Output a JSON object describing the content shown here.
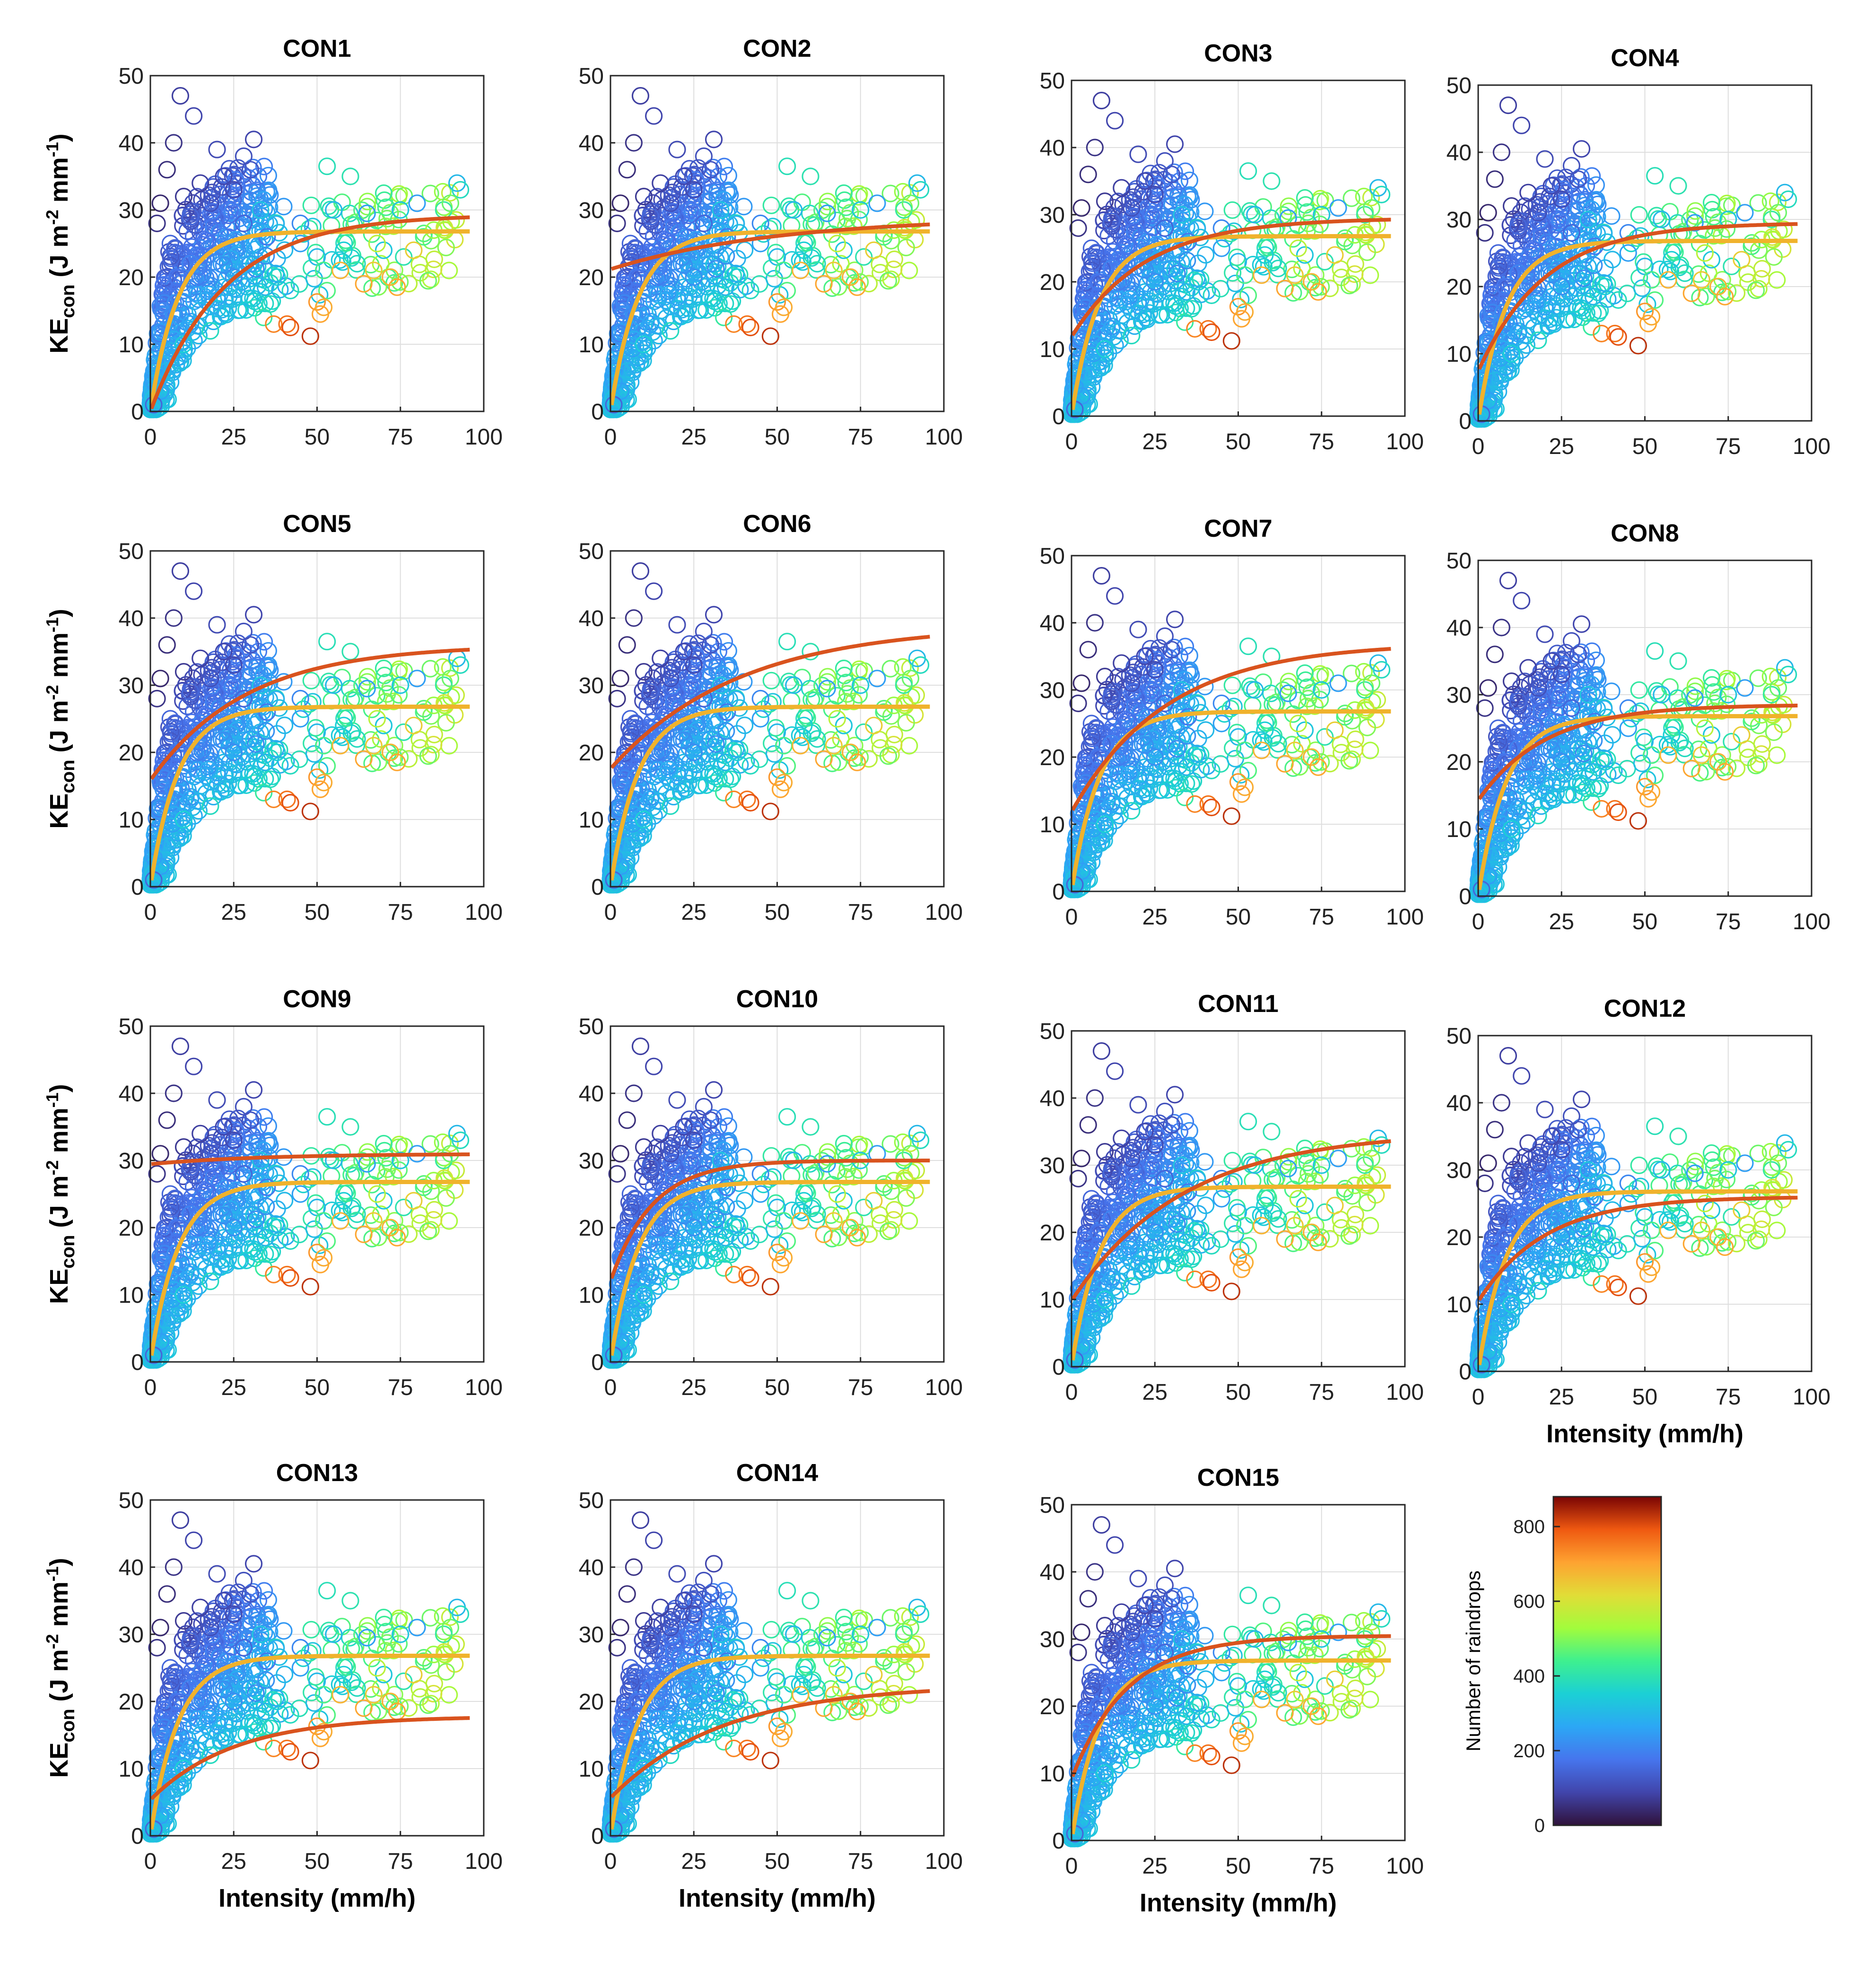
{
  "chart_data": {
    "type": "scatter",
    "panel_titles": [
      "CON1",
      "CON2",
      "CON3",
      "CON4",
      "CON5",
      "CON6",
      "CON7",
      "CON8",
      "CON9",
      "CON10",
      "CON11",
      "CON12",
      "CON13",
      "CON14",
      "CON15"
    ],
    "xlabel": "Intensity (mm/h)",
    "ylabel_main": "KE",
    "ylabel_sub": "con",
    "ylabel_units": "(J m-2 mm-1)",
    "xticks": [
      "0",
      "25",
      "50",
      "75",
      "100"
    ],
    "yticks": [
      "0",
      "10",
      "20",
      "30",
      "40",
      "50"
    ],
    "xlim": [
      0,
      100
    ],
    "ylim": [
      0,
      50
    ],
    "grid": true,
    "colorbar": {
      "label": "Number of raindrops",
      "ticks": [
        "0",
        "200",
        "400",
        "600",
        "800"
      ],
      "range": [
        0,
        880
      ],
      "colormap": "turbo"
    },
    "reference_curve": {
      "color": "#f0b22c",
      "asymptote": 26.8,
      "rate": 0.12,
      "note_shape": "KE = a*(1 - b*exp(-c*I))"
    },
    "fitted_curves": [
      {
        "panel": "CON1",
        "color": "#d9531e",
        "a": 29.3,
        "b": 1.0,
        "c": 0.045
      },
      {
        "panel": "CON2",
        "color": "#d9531e",
        "a": 29.0,
        "b": 0.27,
        "c": 0.02
      },
      {
        "panel": "CON3",
        "color": "#d9531e",
        "a": 29.5,
        "b": 0.6,
        "c": 0.045
      },
      {
        "panel": "CON4",
        "color": "#d9531e",
        "a": 29.5,
        "b": 0.75,
        "c": 0.05
      },
      {
        "panel": "CON5",
        "color": "#d9531e",
        "a": 36.0,
        "b": 0.56,
        "c": 0.035
      },
      {
        "panel": "CON6",
        "color": "#d9531e",
        "a": 39.0,
        "b": 0.55,
        "c": 0.026
      },
      {
        "panel": "CON7",
        "color": "#d9531e",
        "a": 37.0,
        "b": 0.68,
        "c": 0.035
      },
      {
        "panel": "CON8",
        "color": "#d9531e",
        "a": 28.5,
        "b": 0.5,
        "c": 0.05
      },
      {
        "panel": "CON9",
        "color": "#d9531e",
        "a": 31.0,
        "b": 0.05,
        "c": 0.03
      },
      {
        "panel": "CON10",
        "color": "#d9531e",
        "a": 30.0,
        "b": 0.6,
        "c": 0.08
      },
      {
        "panel": "CON11",
        "color": "#d9531e",
        "a": 35.0,
        "b": 0.72,
        "c": 0.03
      },
      {
        "panel": "CON12",
        "color": "#d9531e",
        "a": 26.0,
        "b": 0.6,
        "c": 0.05
      },
      {
        "panel": "CON13",
        "color": "#d9531e",
        "a": 17.8,
        "b": 0.7,
        "c": 0.04
      },
      {
        "panel": "CON14",
        "color": "#d9531e",
        "a": 22.5,
        "b": 0.75,
        "c": 0.03
      },
      {
        "panel": "CON15",
        "color": "#d9531e",
        "a": 30.5,
        "b": 0.7,
        "c": 0.06
      }
    ],
    "scatter_points": [
      {
        "x": 9,
        "y": 47,
        "n": 80
      },
      {
        "x": 13,
        "y": 44,
        "n": 90
      },
      {
        "x": 7,
        "y": 40,
        "n": 60
      },
      {
        "x": 20,
        "y": 39,
        "n": 100
      },
      {
        "x": 28,
        "y": 38,
        "n": 110
      },
      {
        "x": 31,
        "y": 40.5,
        "n": 90
      },
      {
        "x": 30,
        "y": 36,
        "n": 120
      },
      {
        "x": 22,
        "y": 35,
        "n": 90
      },
      {
        "x": 5,
        "y": 36,
        "n": 50
      },
      {
        "x": 15,
        "y": 34,
        "n": 80
      },
      {
        "x": 25,
        "y": 33,
        "n": 100
      },
      {
        "x": 10,
        "y": 32,
        "n": 70
      },
      {
        "x": 3,
        "y": 31,
        "n": 40
      },
      {
        "x": 18,
        "y": 31,
        "n": 110
      },
      {
        "x": 2,
        "y": 28,
        "n": 60
      },
      {
        "x": 12,
        "y": 29,
        "n": 150
      },
      {
        "x": 40,
        "y": 30.5,
        "n": 240
      },
      {
        "x": 53,
        "y": 36.5,
        "n": 390
      },
      {
        "x": 60,
        "y": 35,
        "n": 400
      },
      {
        "x": 45,
        "y": 28,
        "n": 210
      },
      {
        "x": 55,
        "y": 30,
        "n": 300
      },
      {
        "x": 65,
        "y": 29.5,
        "n": 250
      },
      {
        "x": 70,
        "y": 32.5,
        "n": 420
      },
      {
        "x": 75,
        "y": 30,
        "n": 330
      },
      {
        "x": 80,
        "y": 31,
        "n": 250
      },
      {
        "x": 92,
        "y": 34,
        "n": 300
      },
      {
        "x": 93,
        "y": 33,
        "n": 380
      },
      {
        "x": 88,
        "y": 30,
        "n": 420
      },
      {
        "x": 35,
        "y": 26,
        "n": 180
      },
      {
        "x": 45,
        "y": 25,
        "n": 250
      },
      {
        "x": 50,
        "y": 23,
        "n": 300
      },
      {
        "x": 58,
        "y": 24,
        "n": 350
      },
      {
        "x": 62,
        "y": 22,
        "n": 380
      },
      {
        "x": 70,
        "y": 24,
        "n": 330
      },
      {
        "x": 76,
        "y": 23,
        "n": 400
      },
      {
        "x": 82,
        "y": 26,
        "n": 450
      },
      {
        "x": 38,
        "y": 20,
        "n": 350
      },
      {
        "x": 42,
        "y": 18,
        "n": 380
      },
      {
        "x": 52,
        "y": 21,
        "n": 450
      },
      {
        "x": 30,
        "y": 22,
        "n": 250
      },
      {
        "x": 25,
        "y": 20,
        "n": 220
      },
      {
        "x": 20,
        "y": 17,
        "n": 260
      },
      {
        "x": 15,
        "y": 15,
        "n": 300
      },
      {
        "x": 18,
        "y": 12,
        "n": 380
      },
      {
        "x": 10,
        "y": 10,
        "n": 350
      },
      {
        "x": 5,
        "y": 6,
        "n": 300
      },
      {
        "x": 3,
        "y": 3,
        "n": 250
      },
      {
        "x": 1,
        "y": 1,
        "n": 150
      },
      {
        "x": 8,
        "y": 20,
        "n": 180
      },
      {
        "x": 6,
        "y": 25,
        "n": 150
      },
      {
        "x": 4,
        "y": 15,
        "n": 200
      },
      {
        "x": 12,
        "y": 22,
        "n": 200
      },
      {
        "x": 28,
        "y": 28,
        "n": 150
      },
      {
        "x": 34,
        "y": 14,
        "n": 420
      },
      {
        "x": 36,
        "y": 16,
        "n": 380
      },
      {
        "x": 37,
        "y": 13,
        "n": 740
      },
      {
        "x": 41,
        "y": 13,
        "n": 760
      },
      {
        "x": 42,
        "y": 12.5,
        "n": 800
      },
      {
        "x": 48,
        "y": 11.2,
        "n": 830
      },
      {
        "x": 50,
        "y": 16.3,
        "n": 720
      },
      {
        "x": 51,
        "y": 14.5,
        "n": 700
      },
      {
        "x": 52,
        "y": 15.5,
        "n": 690
      },
      {
        "x": 57,
        "y": 21,
        "n": 680
      },
      {
        "x": 64,
        "y": 19,
        "n": 700
      },
      {
        "x": 67,
        "y": 21,
        "n": 650
      },
      {
        "x": 72,
        "y": 20,
        "n": 680
      },
      {
        "x": 74,
        "y": 18.5,
        "n": 700
      },
      {
        "x": 79,
        "y": 24,
        "n": 640
      },
      {
        "x": 68,
        "y": 25,
        "n": 560
      },
      {
        "x": 85,
        "y": 27,
        "n": 520
      },
      {
        "x": 90,
        "y": 31,
        "n": 480
      }
    ]
  }
}
